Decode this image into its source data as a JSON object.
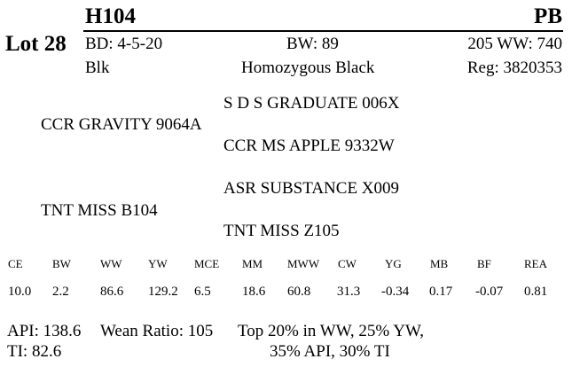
{
  "lot": "Lot 28",
  "tag": "H104",
  "breed": "PB",
  "birth_date": "BD: 4-5-20",
  "birth_weight": "BW: 89",
  "wean_weight": "205 WW: 740",
  "color": "Blk",
  "genotype": "Homozygous Black",
  "registration": "Reg: 3820353",
  "pedigree": {
    "sire_sire": "S D S GRADUATE 006X",
    "sire": "CCR GRAVITY 9064A",
    "sire_dam": "CCR MS APPLE 9332W",
    "dam_sire": "ASR SUBSTANCE X009",
    "dam": "TNT MISS B104",
    "dam_dam": "TNT MISS Z105"
  },
  "epds": [
    {
      "label": "CE",
      "value": "10.0"
    },
    {
      "label": "BW",
      "value": "2.2"
    },
    {
      "label": "WW",
      "value": "86.6"
    },
    {
      "label": "YW",
      "value": "129.2"
    },
    {
      "label": "MCE",
      "value": "6.5"
    },
    {
      "label": "MM",
      "value": "18.6"
    },
    {
      "label": "MWW",
      "value": "60.8"
    },
    {
      "label": "CW",
      "value": "31.3"
    },
    {
      "label": "YG",
      "value": "-0.34"
    },
    {
      "label": "MB",
      "value": "0.17"
    },
    {
      "label": "BF",
      "value": "-0.07"
    },
    {
      "label": "REA",
      "value": "0.81"
    }
  ],
  "footer": {
    "api": "API: 138.6",
    "wean_ratio": "Wean Ratio: 105",
    "top_line1": "Top 20% in WW,  25% YW,",
    "ti": "TI: 82.6",
    "top_line2": "35% API,  30% TI"
  }
}
